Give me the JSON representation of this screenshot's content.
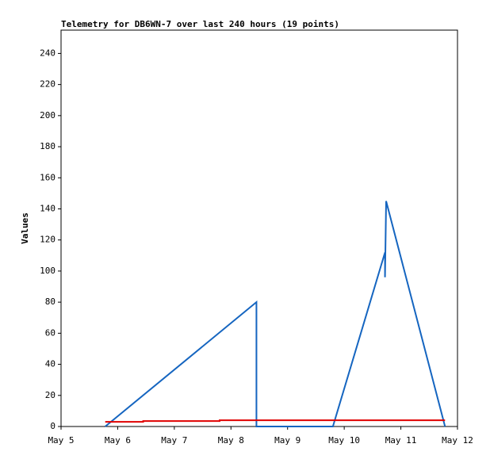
{
  "chart_data": {
    "type": "line",
    "title": "Telemetry for DB6WN-7 over last 240 hours (19 points)",
    "y_label": "Values",
    "xlim": [
      5,
      12
    ],
    "xticks": [
      {
        "value": 5,
        "label": "May 5"
      },
      {
        "value": 6,
        "label": "May 6"
      },
      {
        "value": 7,
        "label": "May 7"
      },
      {
        "value": 8,
        "label": "May 8"
      },
      {
        "value": 9,
        "label": "May 9"
      },
      {
        "value": 10,
        "label": "May 10"
      },
      {
        "value": 11,
        "label": "May 11"
      },
      {
        "value": 12,
        "label": "May 12"
      }
    ],
    "ylim": [
      0,
      255
    ],
    "yticks": [
      0,
      20,
      40,
      60,
      80,
      100,
      120,
      140,
      160,
      180,
      200,
      220,
      240
    ],
    "series": [
      {
        "color": "#1565c0",
        "x": [
          5.78,
          8.45,
          8.45,
          9.8,
          10.72,
          10.72,
          10.73,
          10.74,
          11.78
        ],
        "values": [
          0,
          80,
          0,
          0,
          112,
          96,
          120,
          145,
          0
        ]
      },
      {
        "color": "#e00000",
        "x": [
          5.78,
          6.45,
          6.45,
          7.8,
          7.8,
          11.78
        ],
        "values": [
          3,
          3,
          3.5,
          3.5,
          4,
          4
        ]
      }
    ]
  }
}
